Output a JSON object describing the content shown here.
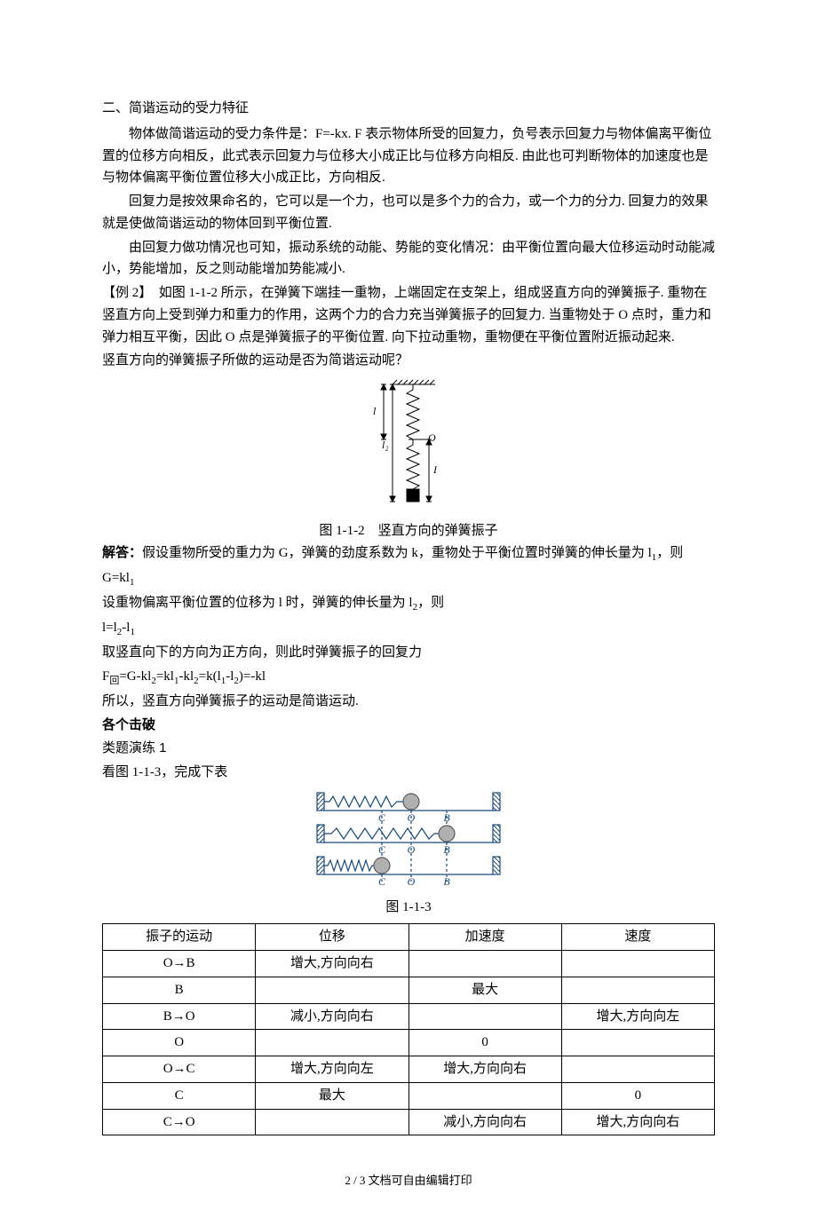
{
  "section": {
    "heading": "二、简谐运动的受力特征",
    "p1": "物体做简谐运动的受力条件是：F=-kx. F 表示物体所受的回复力，负号表示回复力与物体偏离平衡位置的位移方向相反，此式表示回复力与位移大小成正比与位移方向相反. 由此也可判断物体的加速度也是与物体偏离平衡位置位移大小成正比，方向相反.",
    "p2": "回复力是按效果命名的，它可以是一个力，也可以是多个力的合力，或一个力的分力. 回复力的效果就是使做简谐运动的物体回到平衡位置.",
    "p3": "由回复力做功情况也可知，振动系统的动能、势能的变化情况：由平衡位置向最大位移运动时动能减小，势能增加，反之则动能增加势能减小."
  },
  "example2": {
    "label": "【例 2】",
    "body": "如图 1-1-2 所示，在弹簧下端挂一重物，上端固定在支架上，组成竖直方向的弹簧振子. 重物在竖直方向上受到弹力和重力的作用，这两个力的合力充当弹簧振子的回复力. 当重物处于 O 点时，重力和弹力相互平衡，因此 O 点是弹簧振子的平衡位置. 向下拉动重物，重物便在平衡位置附近振动起来.",
    "question": "竖直方向的弹簧振子所做的运动是否为简谐运动呢？",
    "figure_caption": "图 1-1-2　竖直方向的弹簧振子"
  },
  "solution": {
    "label": "解答：",
    "s1_a": "假设重物所受的重力为 G，弹簧的劲度系数为 k，重物处于平衡位置时弹簧的伸长量为 l",
    "s1_b": "，则",
    "eq1_a": "G=kl",
    "s2_a": "设重物偏离平衡位置的位移为 l 时，弹簧的伸长量为 l",
    "s2_b": "，则",
    "eq2_a": "l=l",
    "eq2_b": "-l",
    "s3": "取竖直向下的方向为正方向，则此时弹簧振子的回复力",
    "eq3_a": "F",
    "eq3_sub": "回",
    "eq3_b": "=G-kl",
    "eq3_c": "=kl",
    "eq3_d": "-kl",
    "eq3_e": "=k(l",
    "eq3_f": "-l",
    "eq3_g": ")=-kl",
    "s4": "所以，竖直方向弹簧振子的运动是简谐运动."
  },
  "subs": {
    "one": "1",
    "two": "2"
  },
  "practice": {
    "heading1": "各个击破",
    "heading2": "类题演练 1",
    "intro": "看图 1-1-3，完成下表",
    "figure_caption": "图 1-1-3"
  },
  "figure2": {
    "labels": {
      "O": "O",
      "I": "I",
      "l1": "l",
      "l2": "l₂"
    },
    "colors": {
      "stroke": "#000000",
      "fill": "#000000",
      "bg": "#ffffff"
    }
  },
  "figure3": {
    "labels": {
      "C": "C",
      "O": "O",
      "B": "B"
    },
    "colors": {
      "stroke": "#1a4a7a",
      "ball_fill": "#b0b0b0",
      "ball_stroke": "#5a5a5a",
      "wall_fill": "#8aa8a0"
    }
  },
  "table": {
    "headers": [
      "振子的运动",
      "位移",
      "加速度",
      "速度"
    ],
    "rows": [
      [
        "O→B",
        "增大,方向向右",
        "",
        ""
      ],
      [
        "B",
        "",
        "最大",
        ""
      ],
      [
        "B→O",
        "减小,方向向右",
        "",
        "增大,方向向左"
      ],
      [
        "O",
        "",
        "0",
        ""
      ],
      [
        "O→C",
        "增大,方向向左",
        "增大,方向向右",
        ""
      ],
      [
        "C",
        "最大",
        "",
        "0"
      ],
      [
        "C→O",
        "",
        "减小,方向向右",
        "增大,方向向右"
      ]
    ]
  },
  "footer": {
    "text": "2 / 3 文档可自由编辑打印"
  }
}
